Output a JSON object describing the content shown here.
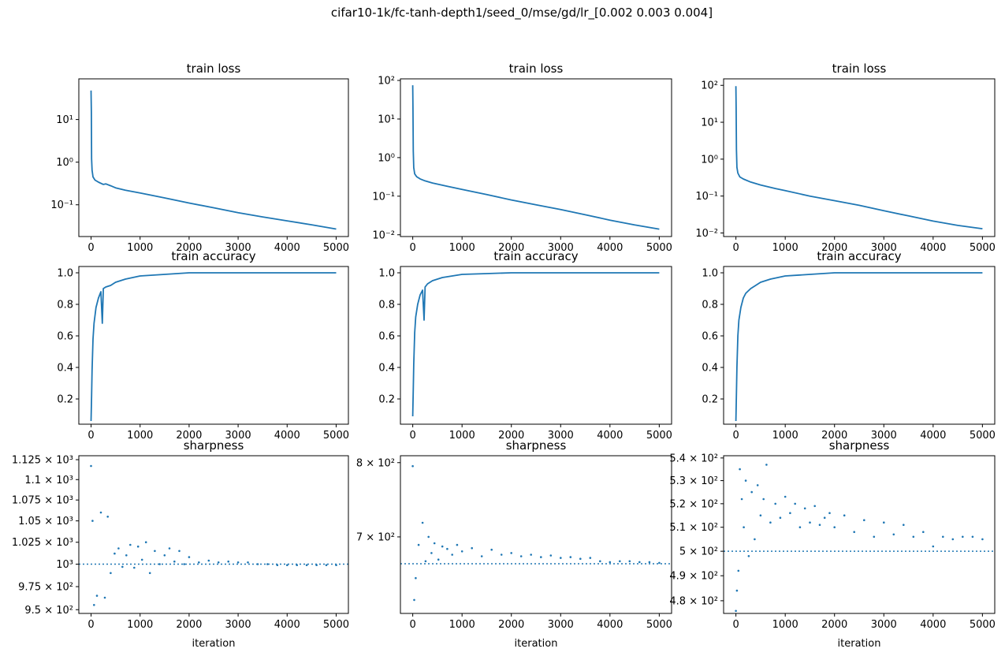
{
  "figure": {
    "suptitle": "cifar10-1k/fc-tanh-depth1/seed_0/mse/gd/lr_[0.002 0.003 0.004]"
  },
  "chart_data": [
    {
      "type": "line",
      "title": "train loss",
      "xlabel": "",
      "yscale": "log",
      "xlim": [
        -250,
        5250
      ],
      "ylim": [
        0.018,
        90
      ],
      "xticks": [
        "0",
        "1000",
        "2000",
        "3000",
        "4000",
        "5000"
      ],
      "yticks": [
        {
          "value": 0.1,
          "label": "10⁻¹"
        },
        {
          "value": 1,
          "label": "10⁰"
        },
        {
          "value": 10,
          "label": "10¹"
        }
      ],
      "color": "#1f77b4",
      "series": [
        {
          "x": [
            0,
            5,
            10,
            20,
            40,
            80,
            150,
            250,
            300,
            400,
            500,
            700,
            1000,
            1200,
            1500,
            2000,
            2500,
            3000,
            3500,
            4000,
            4500,
            5000
          ],
          "y": [
            48,
            15,
            1.2,
            0.65,
            0.45,
            0.38,
            0.34,
            0.3,
            0.31,
            0.28,
            0.25,
            0.22,
            0.19,
            0.17,
            0.145,
            0.11,
            0.085,
            0.065,
            0.052,
            0.042,
            0.034,
            0.027
          ]
        }
      ]
    },
    {
      "type": "line",
      "title": "train loss",
      "xlabel": "",
      "yscale": "log",
      "xlim": [
        -250,
        5250
      ],
      "ylim": [
        0.009,
        110
      ],
      "xticks": [
        "0",
        "1000",
        "2000",
        "3000",
        "4000",
        "5000"
      ],
      "yticks": [
        {
          "value": 0.01,
          "label": "10⁻²"
        },
        {
          "value": 0.1,
          "label": "10⁻¹"
        },
        {
          "value": 1,
          "label": "10⁰"
        },
        {
          "value": 10,
          "label": "10¹"
        },
        {
          "value": 100,
          "label": "10²"
        }
      ],
      "color": "#1f77b4",
      "series": [
        {
          "x": [
            0,
            5,
            10,
            20,
            40,
            80,
            150,
            250,
            400,
            700,
            1000,
            1500,
            2000,
            2500,
            3000,
            3500,
            4000,
            4500,
            5000
          ],
          "y": [
            75,
            20,
            1.5,
            0.55,
            0.38,
            0.32,
            0.28,
            0.25,
            0.22,
            0.18,
            0.15,
            0.11,
            0.08,
            0.06,
            0.045,
            0.033,
            0.024,
            0.018,
            0.014
          ]
        }
      ]
    },
    {
      "type": "line",
      "title": "train loss",
      "xlabel": "",
      "yscale": "log",
      "xlim": [
        -250,
        5250
      ],
      "ylim": [
        0.008,
        150
      ],
      "xticks": [
        "0",
        "1000",
        "2000",
        "3000",
        "4000",
        "5000"
      ],
      "yticks": [
        {
          "value": 0.01,
          "label": "10⁻²"
        },
        {
          "value": 0.1,
          "label": "10⁻¹"
        },
        {
          "value": 1,
          "label": "10⁰"
        },
        {
          "value": 10,
          "label": "10¹"
        },
        {
          "value": 100,
          "label": "10²"
        }
      ],
      "color": "#1f77b4",
      "series": [
        {
          "x": [
            0,
            5,
            10,
            20,
            40,
            80,
            150,
            300,
            500,
            800,
            1000,
            1500,
            2000,
            2500,
            3000,
            3500,
            4000,
            4500,
            5000
          ],
          "y": [
            95,
            25,
            1.8,
            0.6,
            0.42,
            0.33,
            0.29,
            0.24,
            0.2,
            0.16,
            0.14,
            0.1,
            0.075,
            0.056,
            0.04,
            0.029,
            0.021,
            0.016,
            0.013
          ]
        }
      ]
    },
    {
      "type": "line",
      "title": "train accuracy",
      "xlabel": "",
      "xlim": [
        -250,
        5250
      ],
      "ylim": [
        0.04,
        1.04
      ],
      "xticks": [
        "0",
        "1000",
        "2000",
        "3000",
        "4000",
        "5000"
      ],
      "yticks": [
        {
          "value": 0.2,
          "label": "0.2"
        },
        {
          "value": 0.4,
          "label": "0.4"
        },
        {
          "value": 0.6,
          "label": "0.6"
        },
        {
          "value": 0.8,
          "label": "0.8"
        },
        {
          "value": 1.0,
          "label": "1.0"
        }
      ],
      "color": "#1f77b4",
      "series": [
        {
          "x": [
            0,
            10,
            20,
            40,
            60,
            100,
            150,
            200,
            230,
            250,
            300,
            400,
            500,
            700,
            1000,
            1500,
            2000,
            3000,
            4000,
            5000
          ],
          "y": [
            0.06,
            0.22,
            0.38,
            0.58,
            0.68,
            0.78,
            0.84,
            0.88,
            0.68,
            0.9,
            0.91,
            0.92,
            0.94,
            0.96,
            0.98,
            0.99,
            1.0,
            1.0,
            1.0,
            1.0
          ]
        }
      ]
    },
    {
      "type": "line",
      "title": "train accuracy",
      "xlabel": "",
      "xlim": [
        -250,
        5250
      ],
      "ylim": [
        0.04,
        1.04
      ],
      "xticks": [
        "0",
        "1000",
        "2000",
        "3000",
        "4000",
        "5000"
      ],
      "yticks": [
        {
          "value": 0.2,
          "label": "0.2"
        },
        {
          "value": 0.4,
          "label": "0.4"
        },
        {
          "value": 0.6,
          "label": "0.6"
        },
        {
          "value": 0.8,
          "label": "0.8"
        },
        {
          "value": 1.0,
          "label": "1.0"
        }
      ],
      "color": "#1f77b4",
      "series": [
        {
          "x": [
            0,
            10,
            20,
            40,
            60,
            100,
            150,
            200,
            230,
            250,
            300,
            400,
            600,
            800,
            1000,
            1500,
            2000,
            3000,
            4000,
            5000
          ],
          "y": [
            0.09,
            0.26,
            0.42,
            0.62,
            0.72,
            0.8,
            0.86,
            0.89,
            0.7,
            0.91,
            0.93,
            0.95,
            0.97,
            0.98,
            0.99,
            0.995,
            1.0,
            1.0,
            1.0,
            1.0
          ]
        }
      ]
    },
    {
      "type": "line",
      "title": "train accuracy",
      "xlabel": "",
      "xlim": [
        -250,
        5250
      ],
      "ylim": [
        0.04,
        1.04
      ],
      "xticks": [
        "0",
        "1000",
        "2000",
        "3000",
        "4000",
        "5000"
      ],
      "yticks": [
        {
          "value": 0.2,
          "label": "0.2"
        },
        {
          "value": 0.4,
          "label": "0.4"
        },
        {
          "value": 0.6,
          "label": "0.6"
        },
        {
          "value": 0.8,
          "label": "0.8"
        },
        {
          "value": 1.0,
          "label": "1.0"
        }
      ],
      "color": "#1f77b4",
      "series": [
        {
          "x": [
            0,
            10,
            20,
            40,
            60,
            100,
            150,
            200,
            300,
            400,
            500,
            700,
            1000,
            1500,
            2000,
            3000,
            4000,
            5000
          ],
          "y": [
            0.06,
            0.24,
            0.4,
            0.6,
            0.7,
            0.78,
            0.84,
            0.87,
            0.9,
            0.92,
            0.94,
            0.96,
            0.98,
            0.99,
            1.0,
            1.0,
            1.0,
            1.0
          ]
        }
      ]
    },
    {
      "type": "scatter",
      "title": "sharpness",
      "xlabel": "iteration",
      "yscale": "log",
      "xlim": [
        -250,
        5250
      ],
      "ylim": [
        946,
        1130
      ],
      "xticks": [
        "0",
        "1000",
        "2000",
        "3000",
        "4000",
        "5000"
      ],
      "yticks": [
        {
          "value": 950,
          "label": "9.5 × 10²"
        },
        {
          "value": 975,
          "label": "9.75 × 10²"
        },
        {
          "value": 1000,
          "label": "10³"
        },
        {
          "value": 1025,
          "label": "1.025 × 10³"
        },
        {
          "value": 1050,
          "label": "1.05 × 10³"
        },
        {
          "value": 1075,
          "label": "1.075 × 10³"
        },
        {
          "value": 1100,
          "label": "1.1 × 10³"
        },
        {
          "value": 1125,
          "label": "1.125 × 10³"
        }
      ],
      "hline": 1000,
      "color": "#1f77b4",
      "series": [
        {
          "x": [
            0,
            30,
            60,
            120,
            200,
            280,
            340,
            400,
            480,
            560,
            640,
            720,
            800,
            880,
            960,
            1040,
            1120,
            1200,
            1300,
            1400,
            1500,
            1600,
            1700,
            1800,
            1900,
            2000,
            2200,
            2400,
            2600,
            2800,
            3000,
            3200,
            3400,
            3600,
            3800,
            4000,
            4200,
            4400,
            4600,
            4800,
            5000
          ],
          "y": [
            1117,
            1050,
            955,
            965,
            1060,
            963,
            1055,
            990,
            1012,
            1018,
            997,
            1010,
            1022,
            996,
            1020,
            1005,
            1025,
            990,
            1015,
            1000,
            1010,
            1018,
            1003,
            1015,
            1000,
            1008,
            1002,
            1004,
            1002,
            1003,
            1002,
            1002,
            1000,
            1000,
            999,
            999,
            999,
            999,
            999,
            999,
            999
          ]
        }
      ]
    },
    {
      "type": "scatter",
      "title": "sharpness",
      "xlabel": "iteration",
      "yscale": "log",
      "xlim": [
        -250,
        5250
      ],
      "ylim": [
        610,
        810
      ],
      "xticks": [
        "0",
        "1000",
        "2000",
        "3000",
        "4000",
        "5000"
      ],
      "yticks": [
        {
          "value": 700,
          "label": "7 × 10²"
        },
        {
          "value": 800,
          "label": "8 × 10²"
        }
      ],
      "hline": 667,
      "color": "#1f77b4",
      "series": [
        {
          "x": [
            0,
            30,
            60,
            120,
            200,
            260,
            320,
            380,
            440,
            520,
            600,
            700,
            800,
            900,
            1000,
            1200,
            1400,
            1600,
            1800,
            2000,
            2200,
            2400,
            2600,
            2800,
            3000,
            3200,
            3400,
            3600,
            3800,
            4000,
            4200,
            4400,
            4600,
            4800,
            5000
          ],
          "y": [
            795,
            625,
            650,
            690,
            718,
            670,
            700,
            680,
            692,
            672,
            688,
            685,
            678,
            690,
            682,
            686,
            676,
            684,
            678,
            680,
            676,
            678,
            675,
            677,
            674,
            675,
            673,
            674,
            670,
            669,
            670,
            670,
            669,
            669,
            668
          ]
        }
      ]
    },
    {
      "type": "scatter",
      "title": "sharpness",
      "xlabel": "iteration",
      "yscale": "log",
      "xlim": [
        -250,
        5250
      ],
      "ylim": [
        475,
        541
      ],
      "xticks": [
        "0",
        "1000",
        "2000",
        "3000",
        "4000",
        "5000"
      ],
      "yticks": [
        {
          "value": 480,
          "label": "4.8 × 10²"
        },
        {
          "value": 490,
          "label": "4.9 × 10²"
        },
        {
          "value": 500,
          "label": "5 × 10²"
        },
        {
          "value": 510,
          "label": "5.1 × 10²"
        },
        {
          "value": 520,
          "label": "5.2 × 10²"
        },
        {
          "value": 530,
          "label": "5.3 × 10²"
        },
        {
          "value": 540,
          "label": "5.4 × 10²"
        }
      ],
      "hline": 500,
      "color": "#1f77b4",
      "series": [
        {
          "x": [
            0,
            20,
            50,
            80,
            120,
            160,
            200,
            260,
            320,
            380,
            440,
            500,
            560,
            620,
            700,
            800,
            900,
            1000,
            1100,
            1200,
            1300,
            1400,
            1500,
            1600,
            1700,
            1800,
            1900,
            2000,
            2200,
            2400,
            2600,
            2800,
            3000,
            3200,
            3400,
            3600,
            3800,
            4000,
            4200,
            4400,
            4600,
            4800,
            5000
          ],
          "y": [
            476,
            484,
            492,
            535,
            522,
            510,
            530,
            498,
            525,
            505,
            528,
            515,
            522,
            537,
            512,
            520,
            514,
            523,
            516,
            520,
            510,
            518,
            512,
            519,
            511,
            514,
            516,
            510,
            515,
            508,
            513,
            506,
            512,
            507,
            511,
            506,
            508,
            502,
            506,
            505,
            506,
            506,
            505
          ]
        }
      ]
    }
  ]
}
